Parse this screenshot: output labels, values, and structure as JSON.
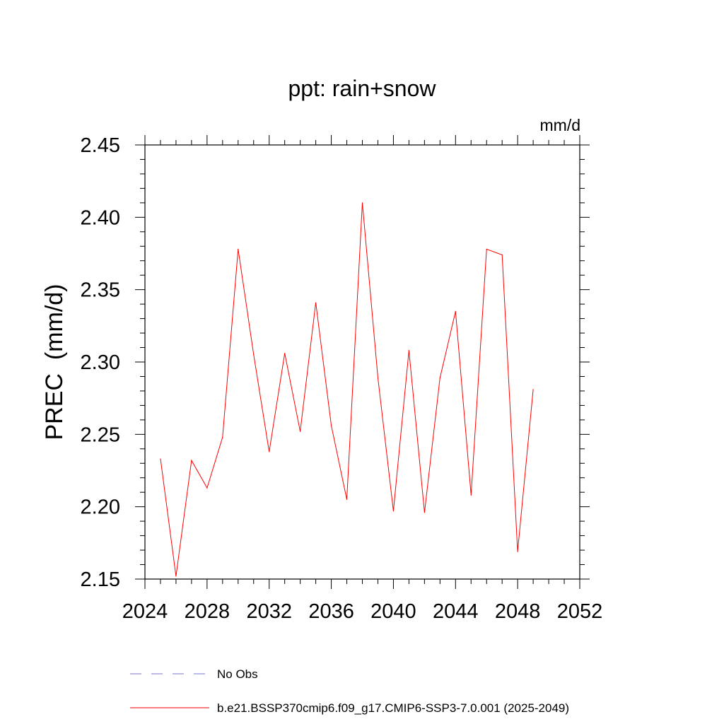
{
  "chart_data": {
    "type": "line",
    "title": "ppt: rain+snow",
    "units": "mm/d",
    "ylabel": "PREC  (mm/d)",
    "xlabel": "",
    "xlim": [
      2024,
      2052
    ],
    "ylim": [
      2.15,
      2.45
    ],
    "xticks": [
      2024,
      2028,
      2032,
      2036,
      2040,
      2044,
      2048,
      2052
    ],
    "xtick_labels": [
      "2024",
      "2028",
      "2032",
      "2036",
      "2040",
      "2044",
      "2048",
      "2052"
    ],
    "yticks": [
      2.15,
      2.2,
      2.25,
      2.3,
      2.35,
      2.4,
      2.45
    ],
    "ytick_labels": [
      "2.15",
      "2.20",
      "2.25",
      "2.30",
      "2.35",
      "2.40",
      "2.45"
    ],
    "grid": false,
    "legend_position": "bottom",
    "series": [
      {
        "name": "b.e21.BSSP370cmip6.f09_g17.CMIP6-SSP3-7.0.001 (2025-2049)",
        "color": "#ff0000",
        "style": "solid",
        "x": [
          2025,
          2026,
          2027,
          2028,
          2029,
          2030,
          2031,
          2032,
          2033,
          2034,
          2035,
          2036,
          2037,
          2038,
          2039,
          2040,
          2041,
          2042,
          2043,
          2044,
          2045,
          2046,
          2047,
          2048,
          2049
        ],
        "values": [
          2.233,
          2.152,
          2.232,
          2.213,
          2.248,
          2.378,
          2.305,
          2.238,
          2.306,
          2.252,
          2.341,
          2.256,
          2.205,
          2.41,
          2.289,
          2.197,
          2.308,
          2.196,
          2.289,
          2.335,
          2.208,
          2.378,
          2.374,
          2.169,
          2.281
        ]
      }
    ],
    "legend": [
      {
        "label": "No Obs",
        "color": "#7777cc",
        "style": "dashed"
      },
      {
        "label": "b.e21.BSSP370cmip6.f09_g17.CMIP6-SSP3-7.0.001 (2025-2049)",
        "color": "#ff0000",
        "style": "solid"
      }
    ]
  }
}
